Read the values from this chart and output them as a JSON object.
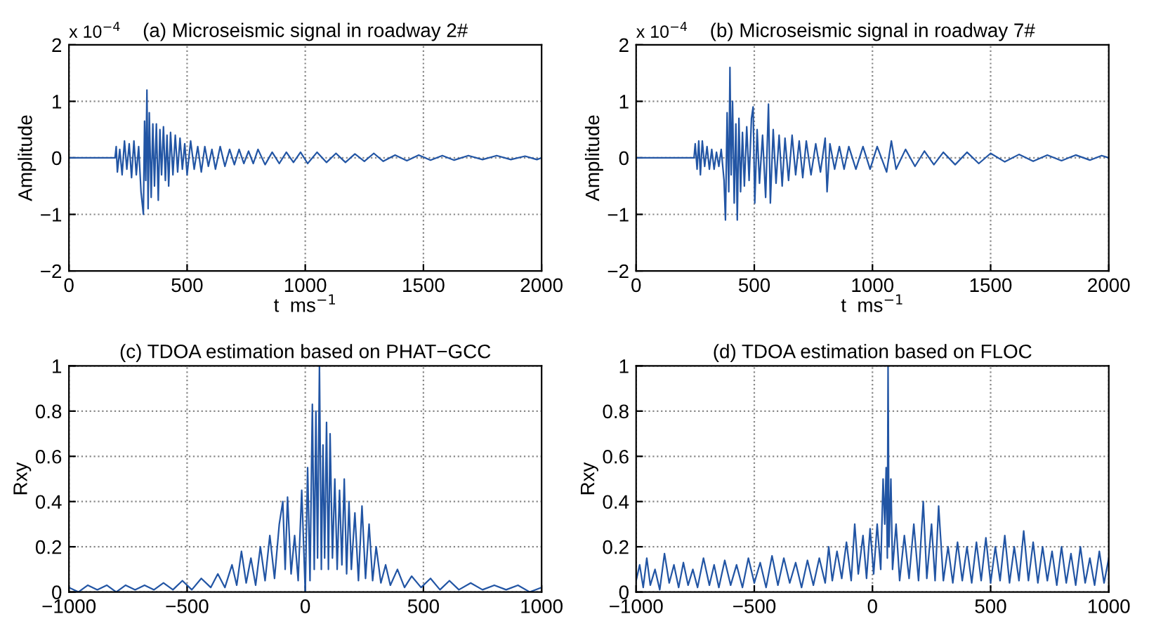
{
  "chart_data": [
    {
      "type": "line",
      "title": "(a) Microseismic signal in roadway 2#",
      "xlabel": "t  ms$^{−1}$",
      "ylabel": "Amplitude",
      "annotations": [
        "x 10$^{−4}$"
      ],
      "color": "#2255a4",
      "grid": true,
      "xlim": [
        0,
        2000
      ],
      "ylim": [
        -2,
        2
      ],
      "xticks": [
        0,
        500,
        1000,
        1500,
        2000
      ],
      "yticks": [
        -2,
        -1,
        0,
        1,
        2
      ],
      "x": [
        0,
        195,
        200,
        205,
        215,
        225,
        235,
        245,
        255,
        265,
        275,
        285,
        295,
        305,
        315,
        320,
        325,
        330,
        335,
        340,
        348,
        355,
        362,
        370,
        378,
        385,
        392,
        400,
        408,
        415,
        422,
        430,
        440,
        450,
        460,
        470,
        480,
        490,
        500,
        515,
        530,
        545,
        560,
        575,
        590,
        605,
        620,
        640,
        660,
        680,
        700,
        720,
        740,
        760,
        780,
        800,
        830,
        860,
        890,
        920,
        950,
        980,
        1010,
        1050,
        1090,
        1130,
        1170,
        1210,
        1250,
        1290,
        1330,
        1380,
        1430,
        1480,
        1530,
        1580,
        1630,
        1690,
        1750,
        1810,
        1870,
        1930,
        1980,
        2000
      ],
      "values": [
        0,
        0,
        0.2,
        -0.25,
        0.15,
        -0.3,
        0.3,
        -0.2,
        0.25,
        -0.35,
        0.3,
        -0.3,
        0.2,
        -0.6,
        -1.0,
        0.65,
        -0.4,
        1.2,
        -0.9,
        0.8,
        -0.7,
        0.6,
        -0.5,
        0.6,
        -0.75,
        0.5,
        -0.3,
        0.55,
        -0.4,
        0.4,
        -0.5,
        0.45,
        -0.3,
        0.4,
        -0.25,
        0.35,
        -0.2,
        0.25,
        -0.3,
        0.3,
        -0.2,
        0.2,
        -0.25,
        0.2,
        -0.15,
        0.15,
        -0.2,
        0.2,
        -0.15,
        0.15,
        -0.12,
        0.15,
        -0.1,
        0.12,
        -0.1,
        0.15,
        -0.12,
        0.1,
        -0.1,
        0.1,
        -0.08,
        0.1,
        -0.1,
        0.1,
        -0.08,
        0.08,
        -0.08,
        0.07,
        -0.06,
        0.08,
        -0.06,
        0.05,
        -0.05,
        0.05,
        -0.04,
        0.04,
        -0.04,
        0.04,
        -0.03,
        0.04,
        -0.03,
        0.03,
        -0.03,
        0
      ]
    },
    {
      "type": "line",
      "title": "(b) Microseismic signal in roadway 7#",
      "xlabel": "t  ms$^{−1}$",
      "ylabel": "Amplitude",
      "annotations": [
        "x 10$^{−4}$"
      ],
      "color": "#2255a4",
      "grid": true,
      "xlim": [
        0,
        2000
      ],
      "ylim": [
        -2,
        2
      ],
      "xticks": [
        0,
        500,
        1000,
        1500,
        2000
      ],
      "yticks": [
        -2,
        -1,
        0,
        1,
        2
      ],
      "x": [
        0,
        245,
        250,
        258,
        265,
        272,
        280,
        290,
        300,
        310,
        320,
        330,
        340,
        350,
        360,
        372,
        378,
        385,
        392,
        397,
        402,
        408,
        415,
        422,
        428,
        435,
        442,
        450,
        458,
        468,
        478,
        488,
        495,
        502,
        512,
        522,
        535,
        548,
        560,
        568,
        580,
        592,
        605,
        618,
        630,
        645,
        660,
        675,
        690,
        705,
        720,
        740,
        760,
        780,
        800,
        808,
        820,
        840,
        860,
        880,
        900,
        930,
        960,
        990,
        1020,
        1060,
        1080,
        1100,
        1140,
        1180,
        1220,
        1260,
        1300,
        1350,
        1400,
        1450,
        1500,
        1560,
        1620,
        1680,
        1740,
        1800,
        1860,
        1920,
        1970,
        2000
      ],
      "values": [
        0,
        0,
        0.25,
        -0.2,
        0.3,
        -0.3,
        0.3,
        -0.15,
        0.2,
        -0.2,
        0.15,
        -0.2,
        0.1,
        -0.15,
        0.15,
        -0.4,
        -1.1,
        0.8,
        -0.6,
        1.6,
        -0.3,
        1.0,
        -0.8,
        0.6,
        -1.1,
        0.7,
        -0.6,
        0.45,
        -0.5,
        0.55,
        -0.4,
        0.7,
        0.9,
        -0.8,
        0.5,
        -0.45,
        0.4,
        -0.7,
        0.95,
        -0.8,
        0.5,
        -0.45,
        0.4,
        -0.5,
        0.35,
        -0.4,
        0.4,
        -0.3,
        0.3,
        -0.35,
        0.3,
        -0.3,
        0.25,
        -0.25,
        0.35,
        -0.6,
        0.25,
        -0.2,
        0.2,
        -0.2,
        0.2,
        -0.2,
        0.2,
        -0.2,
        0.2,
        -0.25,
        0.3,
        -0.2,
        0.15,
        -0.15,
        0.12,
        -0.12,
        0.1,
        -0.12,
        0.1,
        -0.1,
        0.08,
        -0.07,
        0.06,
        -0.06,
        0.05,
        -0.05,
        0.05,
        -0.04,
        0.04,
        0
      ]
    },
    {
      "type": "line",
      "title": "(c) TDOA estimation based on PHAT−GCC",
      "ylabel": "Rxy",
      "color": "#2255a4",
      "grid": true,
      "xlim": [
        -1000,
        1000
      ],
      "ylim": [
        0,
        1
      ],
      "xticks": [
        -1000,
        -500,
        0,
        500,
        1000
      ],
      "yticks": [
        0,
        0.2,
        0.4,
        0.6,
        0.8,
        1
      ],
      "x": [
        -1000,
        -960,
        -920,
        -880,
        -840,
        -800,
        -760,
        -720,
        -680,
        -640,
        -600,
        -560,
        -520,
        -480,
        -440,
        -400,
        -370,
        -340,
        -310,
        -290,
        -270,
        -250,
        -230,
        -210,
        -190,
        -170,
        -150,
        -130,
        -110,
        -95,
        -85,
        -75,
        -60,
        -45,
        -30,
        -15,
        0,
        10,
        20,
        30,
        38,
        45,
        52,
        60,
        68,
        75,
        82,
        90,
        98,
        105,
        115,
        125,
        135,
        145,
        155,
        165,
        175,
        185,
        195,
        210,
        225,
        240,
        255,
        270,
        285,
        300,
        320,
        340,
        360,
        390,
        420,
        450,
        490,
        530,
        570,
        610,
        650,
        700,
        750,
        800,
        850,
        900,
        950,
        1000
      ],
      "values": [
        0.02,
        0.0,
        0.03,
        0.01,
        0.03,
        0.0,
        0.03,
        0.01,
        0.03,
        0.01,
        0.04,
        0.01,
        0.05,
        0.01,
        0.06,
        0.02,
        0.08,
        0.02,
        0.12,
        0.03,
        0.18,
        0.04,
        0.15,
        0.03,
        0.2,
        0.05,
        0.25,
        0.06,
        0.3,
        0.4,
        0.1,
        0.42,
        0.08,
        0.25,
        0.05,
        0.45,
        0.0,
        0.55,
        0.05,
        0.83,
        0.1,
        0.8,
        0.15,
        1.0,
        0.1,
        0.65,
        0.15,
        0.75,
        0.1,
        0.7,
        0.15,
        0.5,
        0.1,
        0.45,
        0.12,
        0.5,
        0.08,
        0.4,
        0.1,
        0.35,
        0.05,
        0.38,
        0.06,
        0.3,
        0.05,
        0.2,
        0.04,
        0.12,
        0.03,
        0.1,
        0.02,
        0.07,
        0.02,
        0.06,
        0.01,
        0.05,
        0.01,
        0.04,
        0.01,
        0.03,
        0.01,
        0.03,
        0.0,
        0.02
      ]
    },
    {
      "type": "line",
      "title": "(d) TDOA estimation based on FLOC",
      "ylabel": "Rxy",
      "color": "#2255a4",
      "grid": true,
      "xlim": [
        -1000,
        1000
      ],
      "ylim": [
        0,
        1
      ],
      "xticks": [
        -1000,
        -500,
        0,
        500,
        1000
      ],
      "yticks": [
        0,
        0.2,
        0.4,
        0.6,
        0.8,
        1
      ],
      "x": [
        -1000,
        -985,
        -970,
        -955,
        -940,
        -920,
        -900,
        -880,
        -860,
        -840,
        -820,
        -800,
        -780,
        -760,
        -740,
        -715,
        -690,
        -670,
        -650,
        -625,
        -600,
        -575,
        -550,
        -525,
        -500,
        -475,
        -450,
        -425,
        -400,
        -375,
        -350,
        -325,
        -300,
        -275,
        -250,
        -225,
        -200,
        -185,
        -170,
        -150,
        -130,
        -110,
        -90,
        -75,
        -60,
        -40,
        -25,
        -10,
        5,
        20,
        35,
        45,
        52,
        58,
        63,
        66,
        70,
        78,
        85,
        100,
        115,
        135,
        155,
        175,
        195,
        215,
        230,
        250,
        265,
        280,
        300,
        320,
        340,
        360,
        380,
        400,
        420,
        440,
        460,
        480,
        500,
        520,
        540,
        560,
        580,
        600,
        620,
        640,
        660,
        680,
        700,
        720,
        740,
        760,
        780,
        800,
        820,
        840,
        860,
        880,
        900,
        920,
        940,
        960,
        980,
        1000
      ],
      "values": [
        0.05,
        0.12,
        0.02,
        0.15,
        0.03,
        0.1,
        0.01,
        0.17,
        0.04,
        0.12,
        0.02,
        0.13,
        0.03,
        0.1,
        0.02,
        0.15,
        0.03,
        0.12,
        0.02,
        0.14,
        0.03,
        0.12,
        0.02,
        0.15,
        0.04,
        0.13,
        0.02,
        0.16,
        0.03,
        0.15,
        0.04,
        0.13,
        0.02,
        0.14,
        0.03,
        0.15,
        0.04,
        0.2,
        0.05,
        0.18,
        0.06,
        0.22,
        0.05,
        0.3,
        0.08,
        0.25,
        0.06,
        0.28,
        0.08,
        0.3,
        0.1,
        0.5,
        0.3,
        0.55,
        0.15,
        1.0,
        0.2,
        0.5,
        0.1,
        0.3,
        0.05,
        0.25,
        0.06,
        0.3,
        0.05,
        0.4,
        0.06,
        0.3,
        0.05,
        0.38,
        0.05,
        0.2,
        0.04,
        0.22,
        0.05,
        0.2,
        0.04,
        0.22,
        0.05,
        0.24,
        0.04,
        0.2,
        0.05,
        0.25,
        0.04,
        0.2,
        0.05,
        0.27,
        0.05,
        0.22,
        0.04,
        0.2,
        0.05,
        0.18,
        0.03,
        0.2,
        0.04,
        0.17,
        0.03,
        0.2,
        0.04,
        0.15,
        0.03,
        0.18,
        0.04,
        0.15
      ]
    }
  ]
}
